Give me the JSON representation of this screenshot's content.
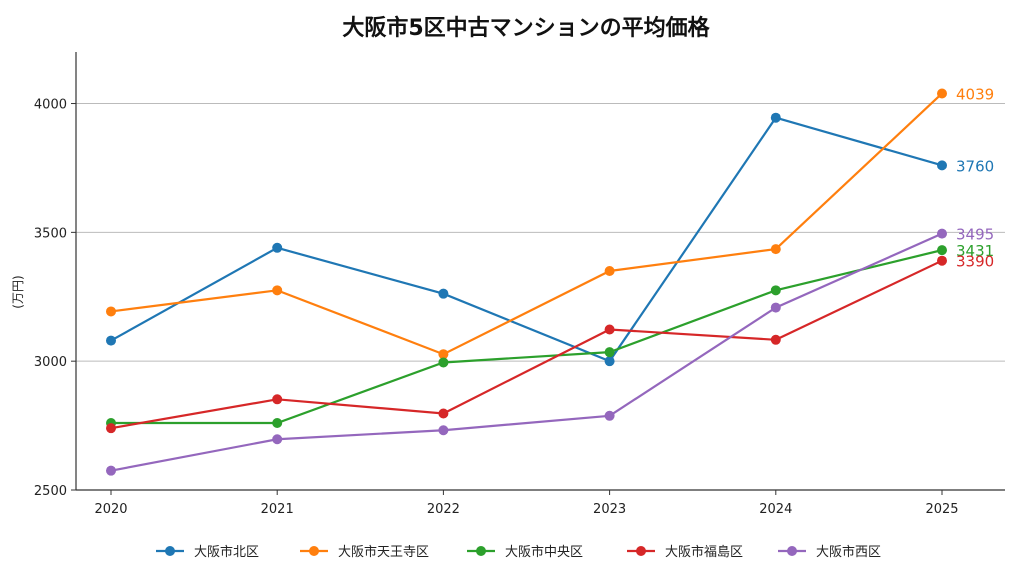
{
  "chart_data": {
    "type": "line",
    "title": "大阪市5区中古マンションの平均価格",
    "ylabel": "(万円)",
    "xlabel": "",
    "x": [
      "2020",
      "2021",
      "2022",
      "2023",
      "2024",
      "2025"
    ],
    "ylim": [
      2500,
      4200
    ],
    "yticks": [
      2500,
      3000,
      3500,
      4000
    ],
    "grid": "horizontal",
    "legend_position": "bottom",
    "series": [
      {
        "name": "大阪市北区",
        "color": "#1f77b4",
        "values": [
          3080,
          3440,
          3262,
          3000,
          3945,
          3760
        ],
        "end_label": "3760"
      },
      {
        "name": "大阪市天王寺区",
        "color": "#ff7f0e",
        "values": [
          3193,
          3275,
          3027,
          3350,
          3435,
          4039
        ],
        "end_label": "4039"
      },
      {
        "name": "大阪市中央区",
        "color": "#2ca02c",
        "values": [
          2760,
          2760,
          2995,
          3035,
          3275,
          3431
        ],
        "end_label": "3431"
      },
      {
        "name": "大阪市福島区",
        "color": "#d62728",
        "values": [
          2740,
          2852,
          2797,
          3123,
          3083,
          3390
        ],
        "end_label": "3390"
      },
      {
        "name": "大阪市西区",
        "color": "#9467bd",
        "values": [
          2575,
          2697,
          2732,
          2788,
          3208,
          3495
        ],
        "end_label": "3495"
      }
    ]
  }
}
